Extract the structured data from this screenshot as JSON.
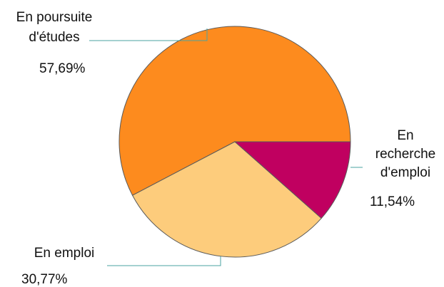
{
  "chart_data": {
    "type": "pie",
    "title": "",
    "slices": [
      {
        "label_lines": [
          "En poursuite",
          "d'études"
        ],
        "value": 57.69,
        "value_label": "57,69%",
        "color": "#fd8b1e"
      },
      {
        "label_lines": [
          "En emploi"
        ],
        "value": 30.77,
        "value_label": "30,77%",
        "color": "#fdcc7c"
      },
      {
        "label_lines": [
          "En",
          "recherche",
          "d'emploi"
        ],
        "value": 11.54,
        "value_label": "11,54%",
        "color": "#c00060"
      }
    ],
    "start": "3 o'clock",
    "direction": "counter-clockwise",
    "legend": "none (callout labels)"
  }
}
